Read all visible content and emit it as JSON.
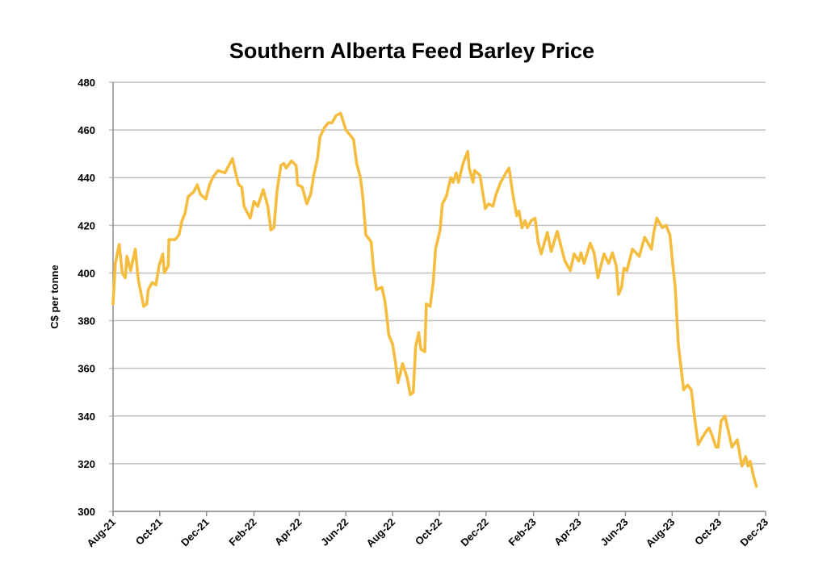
{
  "chart_data": {
    "type": "line",
    "title": "Southern Alberta Feed Barley Price",
    "xlabel": "",
    "ylabel": "C$ per tonne",
    "ylim": [
      300,
      480
    ],
    "yticks": [
      300,
      320,
      340,
      360,
      380,
      400,
      420,
      440,
      460,
      480
    ],
    "xlim": [
      "2021-08-01",
      "2023-12-01"
    ],
    "xticks": [
      {
        "date": "2021-08-01",
        "label": "Aug-21"
      },
      {
        "date": "2021-10-01",
        "label": "Oct-21"
      },
      {
        "date": "2021-12-01",
        "label": "Dec-21"
      },
      {
        "date": "2022-02-01",
        "label": "Feb-22"
      },
      {
        "date": "2022-04-01",
        "label": "Apr-22"
      },
      {
        "date": "2022-06-01",
        "label": "Jun-22"
      },
      {
        "date": "2022-08-01",
        "label": "Aug-22"
      },
      {
        "date": "2022-10-01",
        "label": "Oct-22"
      },
      {
        "date": "2022-12-01",
        "label": "Dec-22"
      },
      {
        "date": "2023-02-01",
        "label": "Feb-23"
      },
      {
        "date": "2023-04-01",
        "label": "Apr-23"
      },
      {
        "date": "2023-06-01",
        "label": "Jun-23"
      },
      {
        "date": "2023-08-01",
        "label": "Aug-23"
      },
      {
        "date": "2023-10-01",
        "label": "Oct-23"
      },
      {
        "date": "2023-12-01",
        "label": "Dec-23"
      }
    ],
    "grid": true,
    "legend": "none",
    "colors": {
      "line": "#f5bd40",
      "grid": "#bfbfbf",
      "axis": "#8c8c8c"
    },
    "series": [
      {
        "points": [
          [
            "2021-08-01",
            387
          ],
          [
            "2021-08-04",
            404
          ],
          [
            "2021-08-09",
            412
          ],
          [
            "2021-08-13",
            400
          ],
          [
            "2021-08-17",
            398
          ],
          [
            "2021-08-19",
            407
          ],
          [
            "2021-08-24",
            401
          ],
          [
            "2021-08-30",
            410
          ],
          [
            "2021-09-03",
            397
          ],
          [
            "2021-09-10",
            386
          ],
          [
            "2021-09-14",
            387
          ],
          [
            "2021-09-16",
            393
          ],
          [
            "2021-09-21",
            396
          ],
          [
            "2021-09-26",
            395
          ],
          [
            "2021-09-30",
            403
          ],
          [
            "2021-10-05",
            408
          ],
          [
            "2021-10-07",
            400
          ],
          [
            "2021-10-12",
            403
          ],
          [
            "2021-10-13",
            414
          ],
          [
            "2021-10-21",
            414
          ],
          [
            "2021-10-26",
            416
          ],
          [
            "2021-10-30",
            422
          ],
          [
            "2021-11-03",
            425
          ],
          [
            "2021-11-07",
            432
          ],
          [
            "2021-11-14",
            434
          ],
          [
            "2021-11-19",
            437
          ],
          [
            "2021-11-23",
            433
          ],
          [
            "2021-11-30",
            431
          ],
          [
            "2021-12-05",
            437
          ],
          [
            "2021-12-09",
            440
          ],
          [
            "2021-12-16",
            443
          ],
          [
            "2021-12-25",
            442
          ],
          [
            "2021-12-30",
            445
          ],
          [
            "2022-01-04",
            448
          ],
          [
            "2022-01-08",
            442
          ],
          [
            "2022-01-12",
            437
          ],
          [
            "2022-01-16",
            436
          ],
          [
            "2022-01-19",
            428
          ],
          [
            "2022-01-27",
            423
          ],
          [
            "2022-02-01",
            430
          ],
          [
            "2022-02-06",
            428
          ],
          [
            "2022-02-13",
            435
          ],
          [
            "2022-02-19",
            428
          ],
          [
            "2022-02-23",
            418
          ],
          [
            "2022-02-27",
            419
          ],
          [
            "2022-03-03",
            434
          ],
          [
            "2022-03-08",
            445
          ],
          [
            "2022-03-12",
            446
          ],
          [
            "2022-03-15",
            444
          ],
          [
            "2022-03-22",
            447
          ],
          [
            "2022-03-28",
            445
          ],
          [
            "2022-03-30",
            437
          ],
          [
            "2022-04-05",
            436
          ],
          [
            "2022-04-11",
            429
          ],
          [
            "2022-04-16",
            433
          ],
          [
            "2022-04-20",
            441
          ],
          [
            "2022-04-25",
            448
          ],
          [
            "2022-04-28",
            457
          ],
          [
            "2022-05-04",
            461
          ],
          [
            "2022-05-09",
            463
          ],
          [
            "2022-05-14",
            463
          ],
          [
            "2022-05-19",
            466
          ],
          [
            "2022-05-25",
            467
          ],
          [
            "2022-06-01",
            460
          ],
          [
            "2022-06-11",
            456
          ],
          [
            "2022-06-15",
            446
          ],
          [
            "2022-06-20",
            440
          ],
          [
            "2022-06-23",
            432
          ],
          [
            "2022-06-27",
            416
          ],
          [
            "2022-07-04",
            413
          ],
          [
            "2022-07-07",
            402
          ],
          [
            "2022-07-11",
            393
          ],
          [
            "2022-07-18",
            394
          ],
          [
            "2022-07-22",
            388
          ],
          [
            "2022-07-25",
            380
          ],
          [
            "2022-07-27",
            374
          ],
          [
            "2022-08-01",
            370
          ],
          [
            "2022-08-05",
            362
          ],
          [
            "2022-08-08",
            354
          ],
          [
            "2022-08-14",
            362
          ],
          [
            "2022-08-20",
            356
          ],
          [
            "2022-08-24",
            349
          ],
          [
            "2022-08-28",
            350
          ],
          [
            "2022-08-31",
            369
          ],
          [
            "2022-09-04",
            375
          ],
          [
            "2022-09-07",
            368
          ],
          [
            "2022-09-12",
            367
          ],
          [
            "2022-09-14",
            387
          ],
          [
            "2022-09-19",
            386
          ],
          [
            "2022-09-23",
            396
          ],
          [
            "2022-09-26",
            410
          ],
          [
            "2022-10-02",
            418
          ],
          [
            "2022-10-05",
            429
          ],
          [
            "2022-10-10",
            432
          ],
          [
            "2022-10-16",
            440
          ],
          [
            "2022-10-19",
            438
          ],
          [
            "2022-10-23",
            442
          ],
          [
            "2022-10-26",
            438
          ],
          [
            "2022-11-01",
            446
          ],
          [
            "2022-11-07",
            451
          ],
          [
            "2022-11-09",
            444
          ],
          [
            "2022-11-14",
            438
          ],
          [
            "2022-11-16",
            443
          ],
          [
            "2022-11-23",
            441
          ],
          [
            "2022-11-30",
            427
          ],
          [
            "2022-12-04",
            429
          ],
          [
            "2022-12-10",
            428
          ],
          [
            "2022-12-14",
            433
          ],
          [
            "2022-12-20",
            438
          ],
          [
            "2022-12-27",
            442
          ],
          [
            "2022-12-31",
            444
          ],
          [
            "2023-01-05",
            433
          ],
          [
            "2023-01-10",
            424
          ],
          [
            "2023-01-13",
            426
          ],
          [
            "2023-01-17",
            419
          ],
          [
            "2023-01-21",
            422
          ],
          [
            "2023-01-24",
            419
          ],
          [
            "2023-01-29",
            422
          ],
          [
            "2023-02-03",
            423
          ],
          [
            "2023-02-07",
            413
          ],
          [
            "2023-02-11",
            408
          ],
          [
            "2023-02-19",
            417
          ],
          [
            "2023-02-24",
            409
          ],
          [
            "2023-03-04",
            417.5
          ],
          [
            "2023-03-09",
            411
          ],
          [
            "2023-03-14",
            405
          ],
          [
            "2023-03-21",
            401
          ],
          [
            "2023-03-26",
            408
          ],
          [
            "2023-04-01",
            405
          ],
          [
            "2023-04-04",
            408.5
          ],
          [
            "2023-04-08",
            404
          ],
          [
            "2023-04-16",
            412.5
          ],
          [
            "2023-04-21",
            408.5
          ],
          [
            "2023-04-26",
            398
          ],
          [
            "2023-05-04",
            408
          ],
          [
            "2023-05-10",
            404
          ],
          [
            "2023-05-15",
            408.5
          ],
          [
            "2023-05-20",
            403
          ],
          [
            "2023-05-23",
            391
          ],
          [
            "2023-05-27",
            394
          ],
          [
            "2023-05-30",
            402
          ],
          [
            "2023-06-03",
            401
          ],
          [
            "2023-06-10",
            410
          ],
          [
            "2023-06-19",
            407
          ],
          [
            "2023-06-26",
            415
          ],
          [
            "2023-07-05",
            410
          ],
          [
            "2023-07-08",
            417
          ],
          [
            "2023-07-12",
            423
          ],
          [
            "2023-07-19",
            419
          ],
          [
            "2023-07-24",
            420
          ],
          [
            "2023-07-29",
            416
          ],
          [
            "2023-08-02",
            403
          ],
          [
            "2023-08-05",
            394
          ],
          [
            "2023-08-09",
            370
          ],
          [
            "2023-08-16",
            351
          ],
          [
            "2023-08-21",
            353
          ],
          [
            "2023-08-26",
            351
          ],
          [
            "2023-08-30",
            340
          ],
          [
            "2023-09-04",
            328
          ],
          [
            "2023-09-13",
            333
          ],
          [
            "2023-09-18",
            335
          ],
          [
            "2023-09-22",
            332
          ],
          [
            "2023-09-27",
            327
          ],
          [
            "2023-09-30",
            327
          ],
          [
            "2023-10-04",
            338
          ],
          [
            "2023-10-09",
            340
          ],
          [
            "2023-10-18",
            327
          ],
          [
            "2023-10-25",
            330
          ],
          [
            "2023-10-31",
            319
          ],
          [
            "2023-11-05",
            323
          ],
          [
            "2023-11-08",
            319
          ],
          [
            "2023-11-11",
            321
          ],
          [
            "2023-11-15",
            315
          ],
          [
            "2023-11-19",
            310.5
          ]
        ]
      }
    ]
  }
}
